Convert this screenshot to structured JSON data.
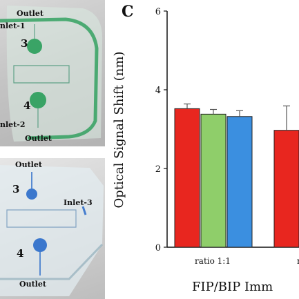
{
  "photos": {
    "top": {
      "labels": [
        "Outlet",
        "nlet-1",
        "3",
        "4",
        "nlet-2",
        "Outlet"
      ],
      "dye_color": "#1f9a52"
    },
    "bottom": {
      "labels": [
        "Outlet",
        "3",
        "Inlet-3",
        "4",
        "Outlet"
      ],
      "dye_color": "#1f64c8"
    }
  },
  "chart_data": {
    "type": "bar",
    "panel_label": "C",
    "ylabel": "Optical Signal Shift (nm)",
    "xlabel": "FIP/BIP Imm",
    "ylim": [
      0,
      6
    ],
    "yticks": [
      0,
      2,
      4,
      6
    ],
    "categories": [
      "ratio 1:1",
      "ra"
    ],
    "groups": [
      {
        "label": "ratio 1:1",
        "bars": [
          {
            "value": 3.52,
            "error": 0.12,
            "color": "#e8261f"
          },
          {
            "value": 3.38,
            "error": 0.12,
            "color": "#8fce6a"
          },
          {
            "value": 3.32,
            "error": 0.15,
            "color": "#3b8fe0"
          }
        ]
      },
      {
        "label": "ra",
        "bars": [
          {
            "value": 2.97,
            "error": 0.62,
            "color": "#e8261f"
          }
        ]
      }
    ]
  }
}
